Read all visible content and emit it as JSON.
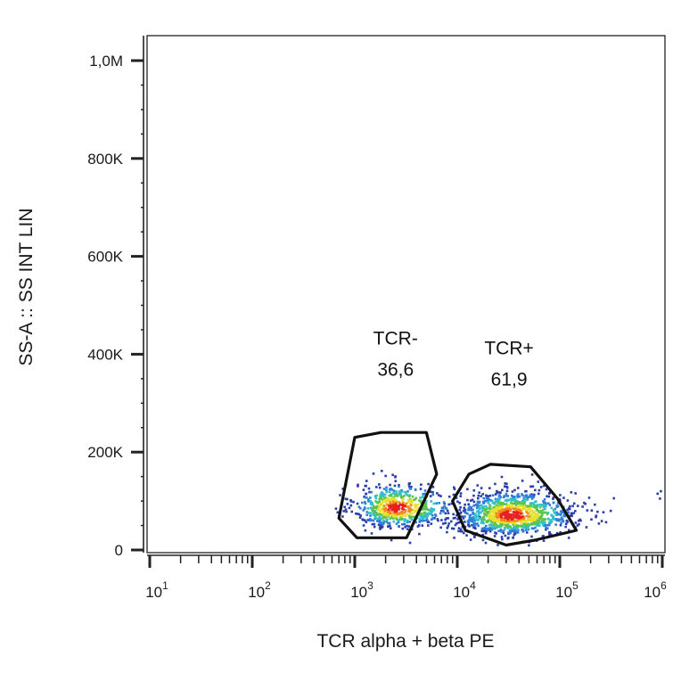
{
  "chart_data": {
    "type": "scatter",
    "subtype": "flow-cytometry-density-dot-plot",
    "xlabel": "TCR alpha + beta PE",
    "ylabel": "SS-A :: SS INT LIN",
    "x_scale": "log",
    "xlim": [
      10,
      1000000
    ],
    "x_ticks": [
      {
        "base": "10",
        "exp": "1"
      },
      {
        "base": "10",
        "exp": "2"
      },
      {
        "base": "10",
        "exp": "3"
      },
      {
        "base": "10",
        "exp": "4"
      },
      {
        "base": "10",
        "exp": "5"
      },
      {
        "base": "10",
        "exp": "6"
      }
    ],
    "y_scale": "linear",
    "ylim": [
      0,
      1050000
    ],
    "y_ticks": [
      {
        "value": 0,
        "label": "0"
      },
      {
        "value": 200000,
        "label": "200K"
      },
      {
        "value": 400000,
        "label": "400K"
      },
      {
        "value": 600000,
        "label": "600K"
      },
      {
        "value": 800000,
        "label": "800K"
      },
      {
        "value": 1000000,
        "label": "1,0M"
      }
    ],
    "grid": false,
    "density_colors": [
      "#2b3fa8",
      "#2f7fd8",
      "#33c0c8",
      "#5cc44a",
      "#e8e030",
      "#f08a20",
      "#e82020"
    ],
    "gates": [
      {
        "name": "TCR-",
        "percent": "36,6",
        "polygon": [
          [
            700,
            65000
          ],
          [
            1000,
            230000
          ],
          [
            1800,
            240000
          ],
          [
            5000,
            240000
          ],
          [
            6300,
            155000
          ],
          [
            3200,
            25000
          ],
          [
            1050,
            25000
          ]
        ],
        "label_at": [
          2500,
          420000
        ]
      },
      {
        "name": "TCR+",
        "percent": "61,9",
        "polygon": [
          [
            9000,
            100000
          ],
          [
            13000,
            155000
          ],
          [
            21000,
            175000
          ],
          [
            52000,
            170000
          ],
          [
            95000,
            105000
          ],
          [
            145000,
            40000
          ],
          [
            57000,
            20000
          ],
          [
            30000,
            10000
          ],
          [
            12000,
            40000
          ]
        ],
        "label_at": [
          32000,
          400000
        ]
      }
    ],
    "populations": [
      {
        "gate": "TCR-",
        "center": [
          2500,
          85000
        ],
        "spread_log": [
          0.2,
          0.28
        ],
        "spread_lin": 22000,
        "count": 650
      },
      {
        "gate": "TCR+",
        "center": [
          33000,
          70000
        ],
        "spread_log": [
          0.25,
          0.32
        ],
        "spread_lin": 22000,
        "count": 1100
      }
    ],
    "outlier_events": [
      [
        5200,
        50000
      ],
      [
        6000,
        65000
      ],
      [
        7000,
        80000
      ],
      [
        8000,
        45000
      ],
      [
        5500,
        110000
      ],
      [
        7500,
        95000
      ],
      [
        6500,
        60000
      ],
      [
        150000,
        90000
      ],
      [
        160000,
        60000
      ],
      [
        130000,
        75000
      ],
      [
        900000,
        115000
      ],
      [
        950000,
        105000
      ],
      [
        970000,
        120000
      ]
    ]
  }
}
